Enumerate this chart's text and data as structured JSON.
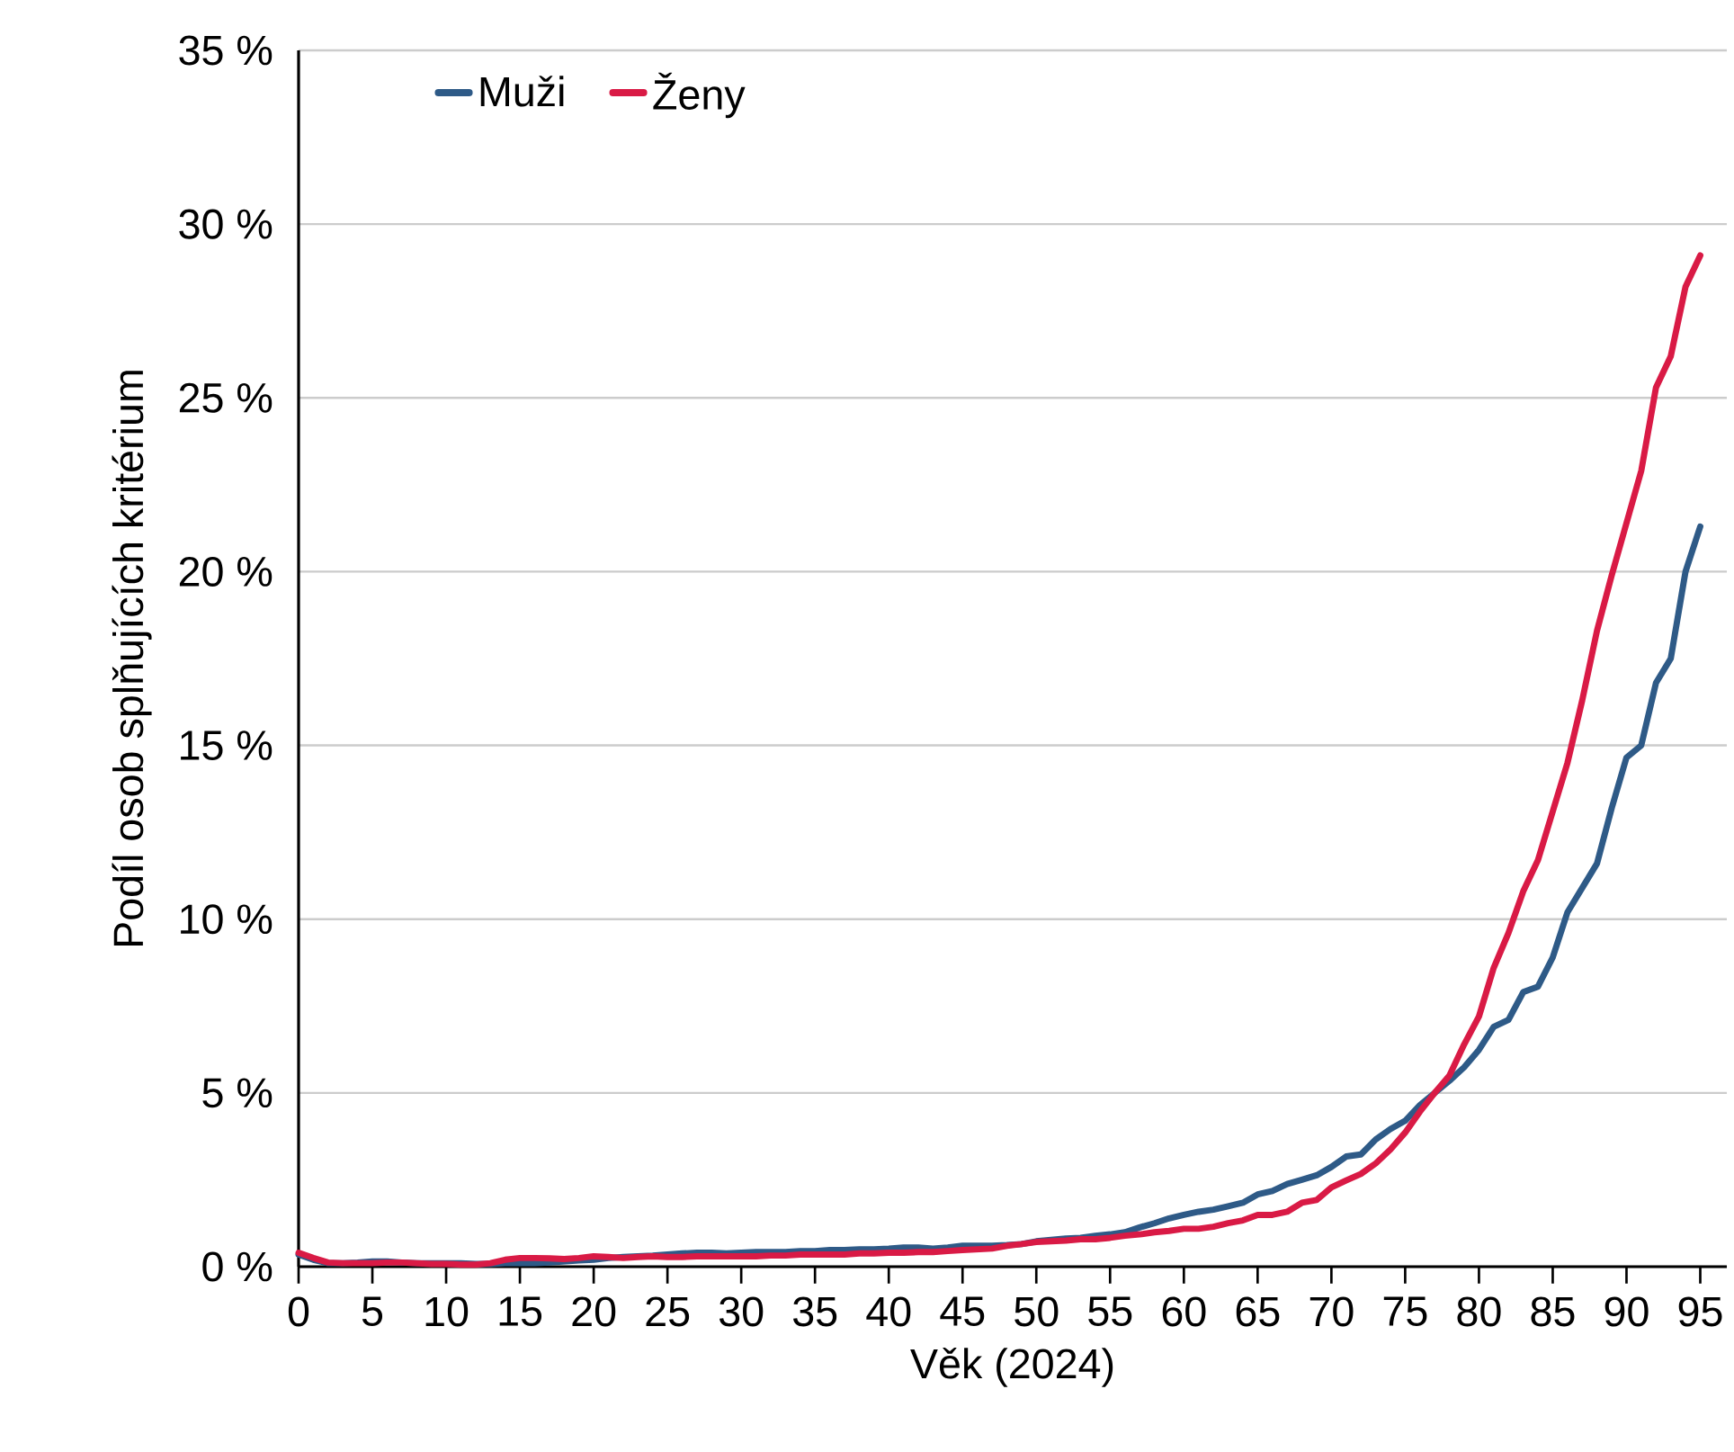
{
  "chart_data": {
    "type": "line",
    "xlabel": "Věk (2024)",
    "ylabel": "Podíl osob splňujících kritérium",
    "x": [
      0,
      1,
      2,
      3,
      4,
      5,
      6,
      7,
      8,
      9,
      10,
      11,
      12,
      13,
      14,
      15,
      16,
      17,
      18,
      19,
      20,
      21,
      22,
      23,
      24,
      25,
      26,
      27,
      28,
      29,
      30,
      31,
      32,
      33,
      34,
      35,
      36,
      37,
      38,
      39,
      40,
      41,
      42,
      43,
      44,
      45,
      46,
      47,
      48,
      49,
      50,
      51,
      52,
      53,
      54,
      55,
      56,
      57,
      58,
      59,
      60,
      61,
      62,
      63,
      64,
      65,
      66,
      67,
      68,
      69,
      70,
      71,
      72,
      73,
      74,
      75,
      76,
      77,
      78,
      79,
      80,
      81,
      82,
      83,
      84,
      85,
      86,
      87,
      88,
      89,
      90,
      91,
      92,
      93,
      94,
      95
    ],
    "series": [
      {
        "name": "Muži",
        "color": "#2e5a87",
        "values": [
          0.35,
          0.2,
          0.1,
          0.1,
          0.12,
          0.15,
          0.15,
          0.12,
          0.1,
          0.1,
          0.1,
          0.1,
          0.08,
          0.08,
          0.1,
          0.1,
          0.1,
          0.12,
          0.15,
          0.18,
          0.2,
          0.25,
          0.28,
          0.3,
          0.32,
          0.35,
          0.38,
          0.4,
          0.4,
          0.38,
          0.4,
          0.42,
          0.42,
          0.42,
          0.45,
          0.45,
          0.48,
          0.48,
          0.5,
          0.5,
          0.52,
          0.55,
          0.55,
          0.52,
          0.55,
          0.6,
          0.6,
          0.6,
          0.62,
          0.65,
          0.73,
          0.77,
          0.81,
          0.83,
          0.89,
          0.93,
          0.99,
          1.13,
          1.25,
          1.39,
          1.49,
          1.58,
          1.64,
          1.74,
          1.84,
          2.08,
          2.18,
          2.38,
          2.5,
          2.63,
          2.87,
          3.17,
          3.23,
          3.66,
          3.96,
          4.2,
          4.65,
          5.0,
          5.35,
          5.74,
          6.24,
          6.9,
          7.1,
          7.9,
          8.06,
          8.9,
          10.2,
          10.9,
          11.6,
          13.2,
          14.65,
          15.0,
          16.8,
          17.5,
          20.0,
          21.3
        ]
      },
      {
        "name": "Ženy",
        "color": "#d91a45",
        "values": [
          0.4,
          0.25,
          0.12,
          0.1,
          0.1,
          0.1,
          0.12,
          0.12,
          0.1,
          0.08,
          0.08,
          0.06,
          0.06,
          0.1,
          0.2,
          0.25,
          0.25,
          0.24,
          0.22,
          0.25,
          0.3,
          0.28,
          0.25,
          0.28,
          0.3,
          0.28,
          0.28,
          0.3,
          0.3,
          0.3,
          0.3,
          0.3,
          0.32,
          0.32,
          0.35,
          0.35,
          0.35,
          0.35,
          0.38,
          0.38,
          0.4,
          0.4,
          0.42,
          0.42,
          0.45,
          0.48,
          0.5,
          0.52,
          0.6,
          0.65,
          0.71,
          0.73,
          0.75,
          0.79,
          0.79,
          0.83,
          0.89,
          0.93,
          0.99,
          1.03,
          1.09,
          1.09,
          1.15,
          1.25,
          1.33,
          1.49,
          1.49,
          1.58,
          1.84,
          1.92,
          2.28,
          2.48,
          2.67,
          2.97,
          3.37,
          3.86,
          4.46,
          5.0,
          5.5,
          6.4,
          7.2,
          8.6,
          9.6,
          10.8,
          11.7,
          13.1,
          14.5,
          16.3,
          18.3,
          19.9,
          21.4,
          22.9,
          25.3,
          26.2,
          28.2,
          29.1
        ]
      }
    ],
    "xlim": [
      0,
      96.8
    ],
    "xticks": [
      0,
      5,
      10,
      15,
      20,
      25,
      30,
      35,
      40,
      45,
      50,
      55,
      60,
      65,
      70,
      75,
      80,
      85,
      90,
      95
    ],
    "ylim": [
      0,
      35
    ],
    "yticks": [
      {
        "value": 0,
        "label": "0 %"
      },
      {
        "value": 5,
        "label": "5 %"
      },
      {
        "value": 10,
        "label": "10 %"
      },
      {
        "value": 15,
        "label": "15 %"
      },
      {
        "value": 20,
        "label": "20 %"
      },
      {
        "value": 25,
        "label": "25 %"
      },
      {
        "value": 30,
        "label": "30 %"
      },
      {
        "value": 35,
        "label": "35 %"
      }
    ],
    "grid": "y",
    "legend": "top left",
    "marker": "none",
    "line_style": "solid"
  }
}
